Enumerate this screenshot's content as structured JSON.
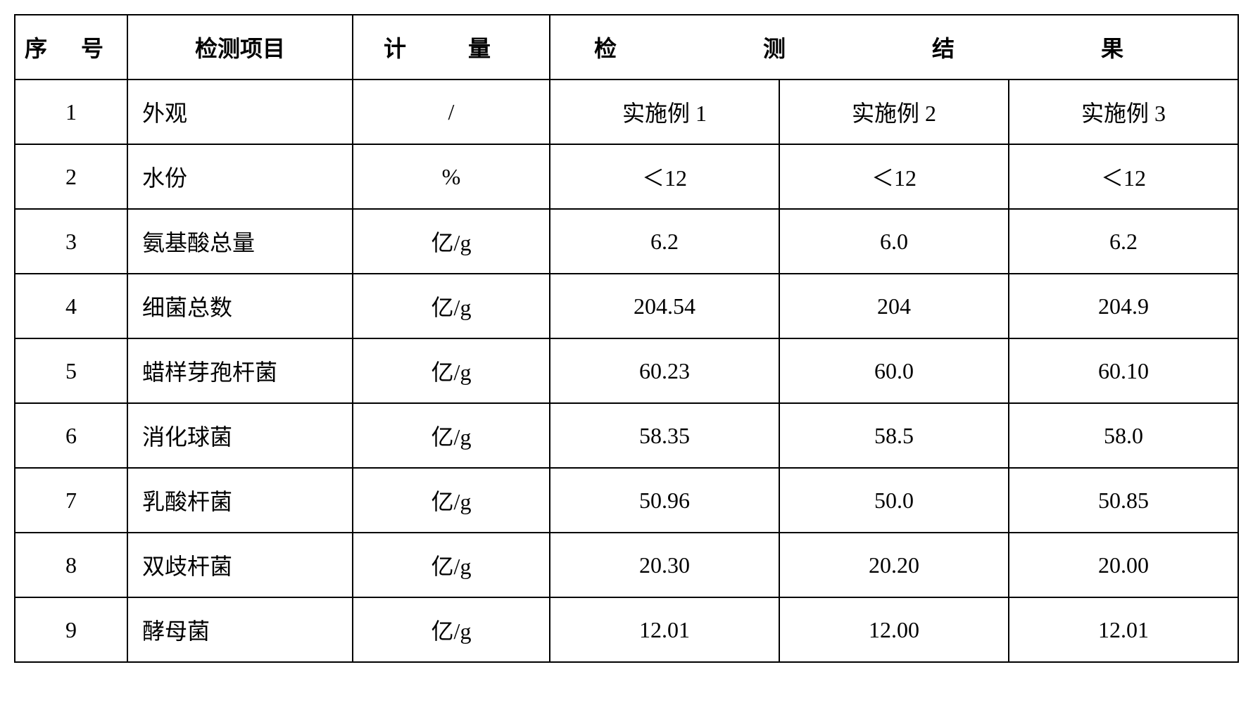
{
  "table": {
    "border_color": "#000000",
    "background_color": "#ffffff",
    "text_color": "#000000",
    "header": {
      "seq": "序 号",
      "item": "检测项目",
      "measure": "计 量",
      "results": "检 测 结 果"
    },
    "columns": {
      "seq_width": 160,
      "item_width": 320,
      "measure_width": 280,
      "result_width": 326
    },
    "font_size": 32,
    "rows": [
      {
        "seq": "1",
        "item": "外观",
        "measure": "/",
        "r1": "实施例 1",
        "r2": "实施例 2",
        "r3": "实施例 3"
      },
      {
        "seq": "2",
        "item": "水份",
        "measure": "%",
        "r1": "＜12",
        "r2": "＜12",
        "r3": "＜12"
      },
      {
        "seq": "3",
        "item": "氨基酸总量",
        "measure": "亿/g",
        "r1": "6.2",
        "r2": "6.0",
        "r3": "6.2"
      },
      {
        "seq": "4",
        "item": "细菌总数",
        "measure": "亿/g",
        "r1": "204.54",
        "r2": "204",
        "r3": "204.9"
      },
      {
        "seq": "5",
        "item": "蜡样芽孢杆菌",
        "measure": "亿/g",
        "r1": "60.23",
        "r2": "60.0",
        "r3": "60.10"
      },
      {
        "seq": "6",
        "item": "消化球菌",
        "measure": "亿/g",
        "r1": "58.35",
        "r2": "58.5",
        "r3": "58.0"
      },
      {
        "seq": "7",
        "item": "乳酸杆菌",
        "measure": "亿/g",
        "r1": "50.96",
        "r2": "50.0",
        "r3": "50.85"
      },
      {
        "seq": "8",
        "item": "双歧杆菌",
        "measure": "亿/g",
        "r1": "20.30",
        "r2": "20.20",
        "r3": "20.00"
      },
      {
        "seq": "9",
        "item": "酵母菌",
        "measure": "亿/g",
        "r1": "12.01",
        "r2": "12.00",
        "r3": "12.01"
      }
    ]
  }
}
